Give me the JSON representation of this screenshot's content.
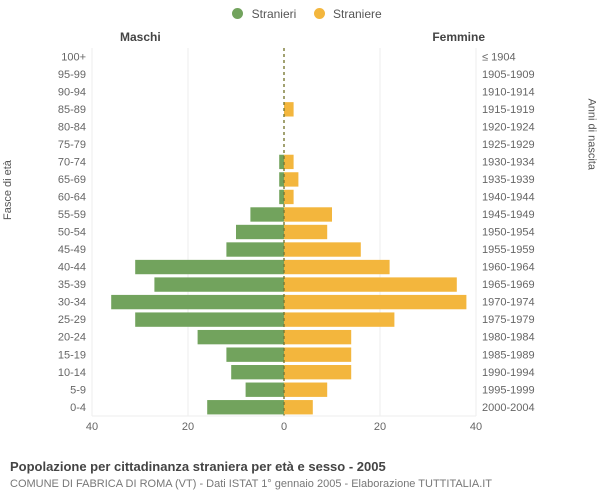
{
  "legend": {
    "male": {
      "label": "Stranieri",
      "color": "#72a35d"
    },
    "female": {
      "label": "Straniere",
      "color": "#f3b63d"
    }
  },
  "subheaders": {
    "left": "Maschi",
    "right": "Femmine"
  },
  "axis_titles": {
    "left": "Fasce di età",
    "right": "Anni di nascita"
  },
  "caption": "Popolazione per cittadinanza straniera per età e sesso - 2005",
  "subcaption": "COMUNE DI FABRICA DI ROMA (VT) - Dati ISTAT 1° gennaio 2005 - Elaborazione TUTTITALIA.IT",
  "chart": {
    "type": "population-pyramid",
    "background_color": "#ffffff",
    "grid_color": "#eeeeee",
    "zero_line_color": "#7a7a35",
    "xlim": [
      0,
      40
    ],
    "xticks": [
      0,
      20,
      40
    ],
    "label_fontsize": 11,
    "bar_gap_ratio": 0.18,
    "rows": [
      {
        "age": "100+",
        "birth": "≤ 1904",
        "m": 0,
        "f": 0
      },
      {
        "age": "95-99",
        "birth": "1905-1909",
        "m": 0,
        "f": 0
      },
      {
        "age": "90-94",
        "birth": "1910-1914",
        "m": 0,
        "f": 0
      },
      {
        "age": "85-89",
        "birth": "1915-1919",
        "m": 0,
        "f": 2
      },
      {
        "age": "80-84",
        "birth": "1920-1924",
        "m": 0,
        "f": 0
      },
      {
        "age": "75-79",
        "birth": "1925-1929",
        "m": 0,
        "f": 0
      },
      {
        "age": "70-74",
        "birth": "1930-1934",
        "m": 1,
        "f": 2
      },
      {
        "age": "65-69",
        "birth": "1935-1939",
        "m": 1,
        "f": 3
      },
      {
        "age": "60-64",
        "birth": "1940-1944",
        "m": 1,
        "f": 2
      },
      {
        "age": "55-59",
        "birth": "1945-1949",
        "m": 7,
        "f": 10
      },
      {
        "age": "50-54",
        "birth": "1950-1954",
        "m": 10,
        "f": 9
      },
      {
        "age": "45-49",
        "birth": "1955-1959",
        "m": 12,
        "f": 16
      },
      {
        "age": "40-44",
        "birth": "1960-1964",
        "m": 31,
        "f": 22
      },
      {
        "age": "35-39",
        "birth": "1965-1969",
        "m": 27,
        "f": 36
      },
      {
        "age": "30-34",
        "birth": "1970-1974",
        "m": 36,
        "f": 38
      },
      {
        "age": "25-29",
        "birth": "1975-1979",
        "m": 31,
        "f": 23
      },
      {
        "age": "20-24",
        "birth": "1980-1984",
        "m": 18,
        "f": 14
      },
      {
        "age": "15-19",
        "birth": "1985-1989",
        "m": 12,
        "f": 14
      },
      {
        "age": "10-14",
        "birth": "1990-1994",
        "m": 11,
        "f": 14
      },
      {
        "age": "5-9",
        "birth": "1995-1999",
        "m": 8,
        "f": 9
      },
      {
        "age": "0-4",
        "birth": "2000-2004",
        "m": 16,
        "f": 6
      }
    ]
  }
}
